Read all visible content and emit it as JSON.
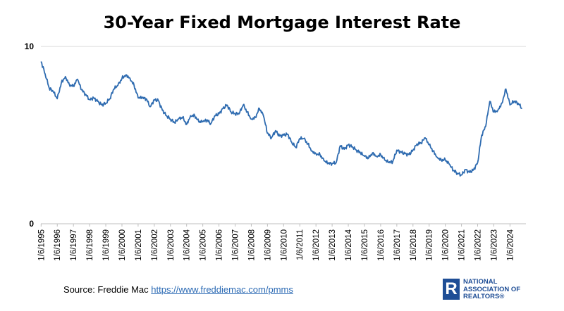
{
  "chart_data": {
    "type": "line",
    "title": "30-Year Fixed Mortgage Interest Rate",
    "xlabel": "",
    "ylabel": "",
    "ylim": [
      0,
      10
    ],
    "y_tick_labels": [
      "10",
      "0"
    ],
    "grid": "horizontal",
    "legend": "none",
    "x_tick_labels": [
      "1/6/1995",
      "1/6/1996",
      "1/6/1997",
      "1/6/1998",
      "1/6/1999",
      "1/6/2000",
      "1/6/2001",
      "1/6/2002",
      "1/6/2003",
      "1/6/2004",
      "1/6/2005",
      "1/6/2006",
      "1/6/2007",
      "1/6/2008",
      "1/6/2009",
      "1/6/2010",
      "1/6/2011",
      "1/6/2012",
      "1/6/2013",
      "1/6/2014",
      "1/6/2015",
      "1/6/2016",
      "1/6/2017",
      "1/6/2018",
      "1/6/2019",
      "1/6/2020",
      "1/6/2021",
      "1/6/2022",
      "1/6/2023",
      "1/6/2024"
    ],
    "line_color": "#2e6bb0",
    "series": [
      {
        "x": [
          "1995-01",
          "1995-04",
          "1995-07",
          "1995-10",
          "1996-01",
          "1996-04",
          "1996-07",
          "1996-10",
          "1997-01",
          "1997-04",
          "1997-07",
          "1997-10",
          "1998-01",
          "1998-04",
          "1998-07",
          "1998-10",
          "1999-01",
          "1999-04",
          "1999-07",
          "1999-10",
          "2000-01",
          "2000-04",
          "2000-07",
          "2000-10",
          "2001-01",
          "2001-04",
          "2001-07",
          "2001-10",
          "2002-01",
          "2002-04",
          "2002-07",
          "2002-10",
          "2003-01",
          "2003-04",
          "2003-07",
          "2003-10",
          "2004-01",
          "2004-04",
          "2004-07",
          "2004-10",
          "2005-01",
          "2005-04",
          "2005-07",
          "2005-10",
          "2006-01",
          "2006-04",
          "2006-07",
          "2006-10",
          "2007-01",
          "2007-04",
          "2007-07",
          "2007-10",
          "2008-01",
          "2008-04",
          "2008-07",
          "2008-10",
          "2009-01",
          "2009-04",
          "2009-07",
          "2009-10",
          "2010-01",
          "2010-04",
          "2010-07",
          "2010-10",
          "2011-01",
          "2011-04",
          "2011-07",
          "2011-10",
          "2012-01",
          "2012-04",
          "2012-07",
          "2012-10",
          "2013-01",
          "2013-04",
          "2013-07",
          "2013-10",
          "2014-01",
          "2014-04",
          "2014-07",
          "2014-10",
          "2015-01",
          "2015-04",
          "2015-07",
          "2015-10",
          "2016-01",
          "2016-04",
          "2016-07",
          "2016-10",
          "2017-01",
          "2017-04",
          "2017-07",
          "2017-10",
          "2018-01",
          "2018-04",
          "2018-07",
          "2018-10",
          "2019-01",
          "2019-04",
          "2019-07",
          "2019-10",
          "2020-01",
          "2020-04",
          "2020-07",
          "2020-10",
          "2021-01",
          "2021-04",
          "2021-07",
          "2021-10",
          "2022-01",
          "2022-04",
          "2022-07",
          "2022-10",
          "2023-01",
          "2023-04",
          "2023-07",
          "2023-10",
          "2024-01",
          "2024-04",
          "2024-07",
          "2024-10"
        ],
        "y": [
          9.15,
          8.45,
          7.65,
          7.45,
          7.05,
          7.95,
          8.3,
          7.85,
          7.75,
          8.15,
          7.55,
          7.3,
          7.0,
          7.1,
          6.9,
          6.7,
          6.8,
          7.05,
          7.6,
          7.8,
          8.2,
          8.4,
          8.2,
          7.8,
          7.1,
          7.1,
          7.05,
          6.6,
          7.0,
          6.95,
          6.4,
          6.1,
          5.9,
          5.7,
          5.9,
          6.0,
          5.6,
          6.1,
          6.1,
          5.75,
          5.75,
          5.85,
          5.65,
          6.1,
          6.2,
          6.5,
          6.7,
          6.3,
          6.2,
          6.2,
          6.7,
          6.3,
          5.9,
          6.0,
          6.5,
          6.1,
          5.1,
          4.85,
          5.25,
          4.95,
          5.0,
          5.05,
          4.6,
          4.3,
          4.8,
          4.8,
          4.5,
          4.1,
          3.95,
          3.9,
          3.55,
          3.4,
          3.4,
          3.45,
          4.4,
          4.2,
          4.45,
          4.35,
          4.15,
          4.0,
          3.8,
          3.7,
          4.0,
          3.8,
          3.9,
          3.6,
          3.45,
          3.5,
          4.15,
          4.05,
          3.95,
          3.9,
          4.15,
          4.5,
          4.55,
          4.85,
          4.45,
          4.1,
          3.75,
          3.6,
          3.6,
          3.35,
          3.0,
          2.85,
          2.75,
          3.05,
          2.9,
          3.05,
          3.45,
          5.0,
          5.5,
          6.9,
          6.3,
          6.4,
          6.8,
          7.6,
          6.7,
          6.9,
          6.8,
          6.5
        ]
      }
    ]
  },
  "source": {
    "label": "Source: Freddie Mac",
    "link": "https://www.freddiemac.com/pmms"
  },
  "logo": {
    "mark": "R",
    "line1": "NATIONAL",
    "line2": "ASSOCIATION OF",
    "line3": "REALTORS®"
  }
}
